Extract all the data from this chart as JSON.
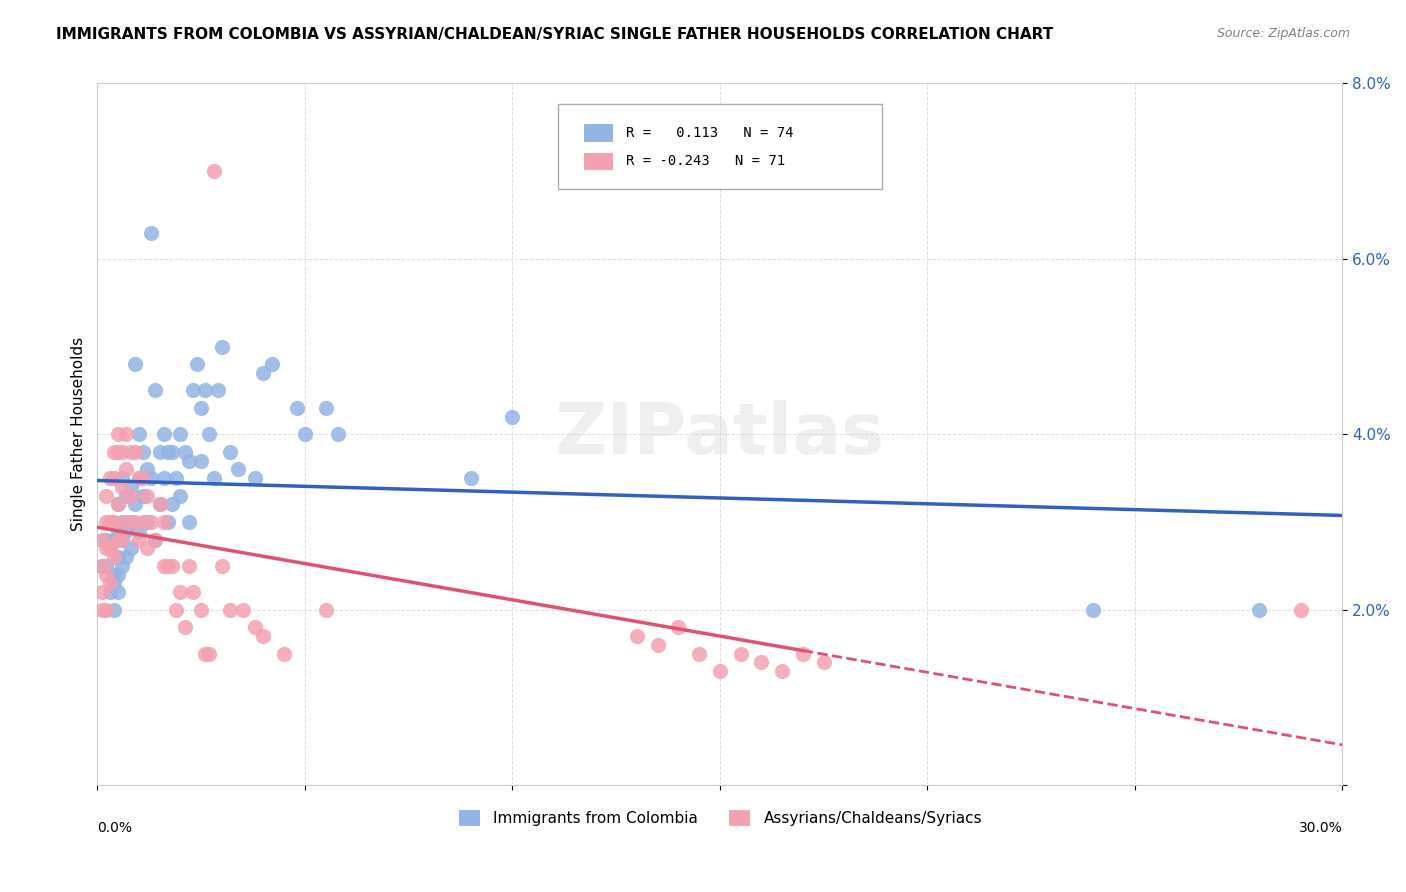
{
  "title": "IMMIGRANTS FROM COLOMBIA VS ASSYRIAN/CHALDEAN/SYRIAC SINGLE FATHER HOUSEHOLDS CORRELATION CHART",
  "source": "Source: ZipAtlas.com",
  "ylabel": "Single Father Households",
  "xlim": [
    0,
    0.3
  ],
  "ylim": [
    0,
    0.08
  ],
  "yticks": [
    0,
    0.02,
    0.04,
    0.06,
    0.08
  ],
  "ytick_labels": [
    "",
    "2.0%",
    "4.0%",
    "6.0%",
    "8.0%"
  ],
  "xticks": [
    0.0,
    0.05,
    0.1,
    0.15,
    0.2,
    0.25,
    0.3
  ],
  "watermark": "ZIPatlas",
  "legend": {
    "colombia_label": "Immigrants from Colombia",
    "assyrian_label": "Assyrians/Chaldeans/Syriacs",
    "colombia_R": "0.113",
    "colombia_N": "74",
    "assyrian_R": "-0.243",
    "assyrian_N": "71"
  },
  "colombia_color": "#92b4e3",
  "assyrian_color": "#f4a0b0",
  "colombia_line_color": "#3060c0",
  "assyrian_line_color": "#e05070",
  "background_color": "#ffffff",
  "grid_color": "#dddddd",
  "colombia_x": [
    0.001,
    0.002,
    0.002,
    0.003,
    0.003,
    0.003,
    0.004,
    0.004,
    0.004,
    0.004,
    0.005,
    0.005,
    0.005,
    0.005,
    0.005,
    0.006,
    0.006,
    0.006,
    0.006,
    0.007,
    0.007,
    0.007,
    0.008,
    0.008,
    0.008,
    0.009,
    0.009,
    0.01,
    0.01,
    0.01,
    0.011,
    0.011,
    0.012,
    0.012,
    0.013,
    0.013,
    0.014,
    0.014,
    0.015,
    0.015,
    0.016,
    0.016,
    0.017,
    0.017,
    0.018,
    0.018,
    0.019,
    0.02,
    0.02,
    0.021,
    0.022,
    0.022,
    0.023,
    0.024,
    0.025,
    0.025,
    0.026,
    0.027,
    0.028,
    0.029,
    0.03,
    0.032,
    0.034,
    0.038,
    0.04,
    0.042,
    0.048,
    0.05,
    0.055,
    0.058,
    0.09,
    0.1,
    0.24,
    0.28
  ],
  "colombia_y": [
    0.025,
    0.028,
    0.025,
    0.03,
    0.027,
    0.022,
    0.028,
    0.024,
    0.023,
    0.02,
    0.032,
    0.029,
    0.026,
    0.024,
    0.022,
    0.035,
    0.03,
    0.028,
    0.025,
    0.033,
    0.029,
    0.026,
    0.034,
    0.03,
    0.027,
    0.048,
    0.032,
    0.04,
    0.035,
    0.029,
    0.038,
    0.033,
    0.036,
    0.03,
    0.063,
    0.035,
    0.045,
    0.028,
    0.038,
    0.032,
    0.04,
    0.035,
    0.038,
    0.03,
    0.038,
    0.032,
    0.035,
    0.04,
    0.033,
    0.038,
    0.037,
    0.03,
    0.045,
    0.048,
    0.037,
    0.043,
    0.045,
    0.04,
    0.035,
    0.045,
    0.05,
    0.038,
    0.036,
    0.035,
    0.047,
    0.048,
    0.043,
    0.04,
    0.043,
    0.04,
    0.035,
    0.042,
    0.02,
    0.02
  ],
  "assyrian_x": [
    0.001,
    0.001,
    0.001,
    0.001,
    0.002,
    0.002,
    0.002,
    0.002,
    0.002,
    0.003,
    0.003,
    0.003,
    0.003,
    0.004,
    0.004,
    0.004,
    0.004,
    0.005,
    0.005,
    0.005,
    0.005,
    0.006,
    0.006,
    0.006,
    0.007,
    0.007,
    0.007,
    0.008,
    0.008,
    0.009,
    0.009,
    0.01,
    0.01,
    0.011,
    0.011,
    0.012,
    0.012,
    0.013,
    0.014,
    0.015,
    0.016,
    0.016,
    0.017,
    0.018,
    0.019,
    0.02,
    0.021,
    0.022,
    0.023,
    0.025,
    0.026,
    0.027,
    0.028,
    0.03,
    0.032,
    0.035,
    0.038,
    0.04,
    0.045,
    0.055,
    0.13,
    0.135,
    0.14,
    0.145,
    0.15,
    0.155,
    0.16,
    0.165,
    0.17,
    0.175,
    0.29
  ],
  "assyrian_y": [
    0.028,
    0.025,
    0.022,
    0.02,
    0.033,
    0.03,
    0.027,
    0.024,
    0.02,
    0.035,
    0.03,
    0.027,
    0.023,
    0.038,
    0.035,
    0.03,
    0.026,
    0.04,
    0.038,
    0.032,
    0.028,
    0.038,
    0.034,
    0.028,
    0.04,
    0.036,
    0.03,
    0.038,
    0.033,
    0.038,
    0.03,
    0.035,
    0.028,
    0.035,
    0.03,
    0.033,
    0.027,
    0.03,
    0.028,
    0.032,
    0.03,
    0.025,
    0.025,
    0.025,
    0.02,
    0.022,
    0.018,
    0.025,
    0.022,
    0.02,
    0.015,
    0.015,
    0.07,
    0.025,
    0.02,
    0.02,
    0.018,
    0.017,
    0.015,
    0.02,
    0.017,
    0.016,
    0.018,
    0.015,
    0.013,
    0.015,
    0.014,
    0.013,
    0.015,
    0.014,
    0.02
  ]
}
